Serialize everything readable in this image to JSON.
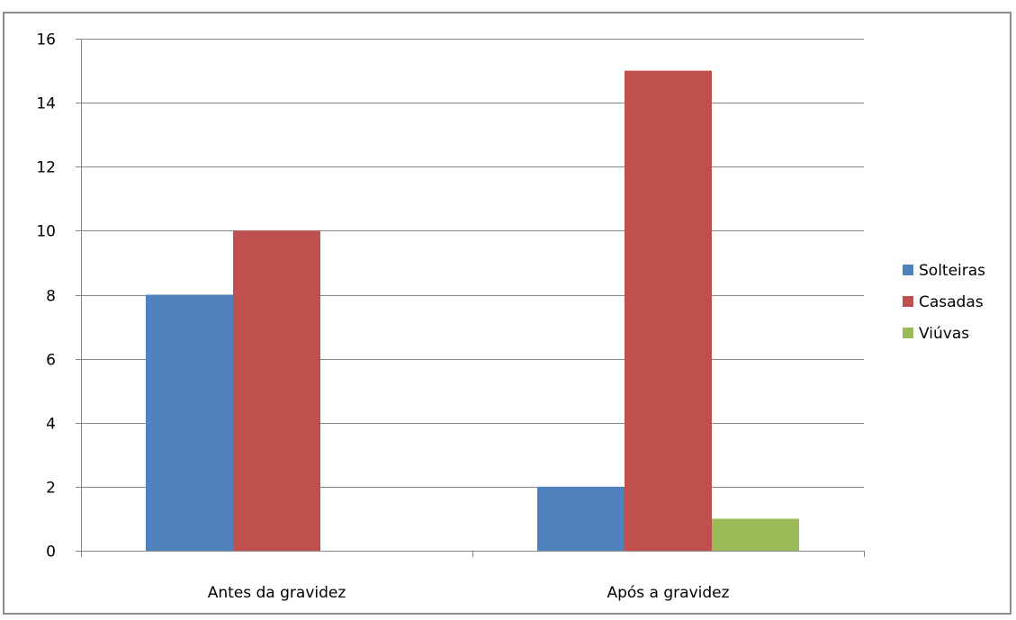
{
  "chart_data": {
    "type": "bar",
    "categories": [
      "Antes da gravidez",
      "Após a gravidez"
    ],
    "series": [
      {
        "name": "Solteiras",
        "values": [
          8,
          2
        ],
        "color": "#4f81bd"
      },
      {
        "name": "Casadas",
        "values": [
          10,
          15
        ],
        "color": "#c0504d"
      },
      {
        "name": "Viúvas",
        "values": [
          0,
          1
        ],
        "color": "#9bbb59"
      }
    ],
    "ylim": [
      0,
      16
    ],
    "yticks": [
      0,
      2,
      4,
      6,
      8,
      10,
      12,
      14,
      16
    ],
    "grid": true,
    "legend": "right"
  }
}
